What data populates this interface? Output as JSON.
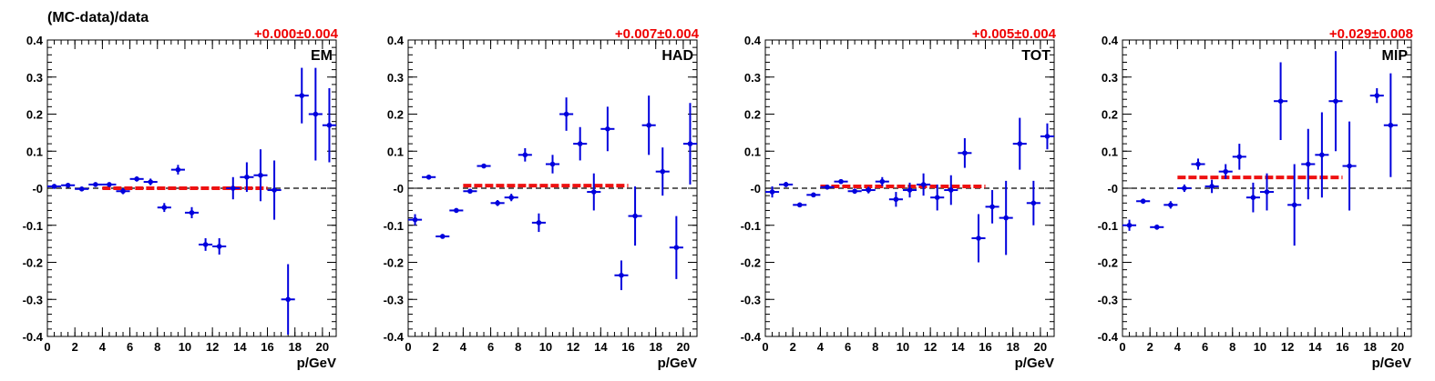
{
  "figure": {
    "ylabel": "(MC-data)/data",
    "xlabel": "p/GeV"
  },
  "colors": {
    "points": "#0000dd",
    "fit": "#ee1111",
    "fit_label": "#ee0000",
    "zero_line": "#000000"
  },
  "chart_data": [
    {
      "type": "scatter",
      "title": "EM",
      "fit_label": "+0.000±0.004",
      "fit": {
        "x": [
          4,
          16
        ],
        "y": 0.0
      },
      "xlabel": "p/GeV",
      "ylabel": "(MC-data)/data",
      "xlim": [
        0,
        21
      ],
      "ylim": [
        -0.4,
        0.4
      ],
      "xticks": [
        0,
        2,
        4,
        6,
        8,
        10,
        12,
        14,
        16,
        18,
        20
      ],
      "yticks": [
        -0.4,
        -0.3,
        -0.2,
        -0.1,
        0,
        0.1,
        0.2,
        0.3,
        0.4
      ],
      "ytick_labels": [
        "-0.4",
        "-0.3",
        "-0.2",
        "-0.1",
        "-0",
        "0.1",
        "0.2",
        "0.3",
        "0.4"
      ],
      "points": [
        {
          "x": 0.5,
          "y": 0.005,
          "err": 0.004
        },
        {
          "x": 1.5,
          "y": 0.008,
          "err": 0.004
        },
        {
          "x": 2.5,
          "y": -0.002,
          "err": 0.004
        },
        {
          "x": 3.5,
          "y": 0.01,
          "err": 0.005
        },
        {
          "x": 4.5,
          "y": 0.01,
          "err": 0.006
        },
        {
          "x": 5.5,
          "y": -0.008,
          "err": 0.008
        },
        {
          "x": 6.5,
          "y": 0.025,
          "err": 0.007
        },
        {
          "x": 7.5,
          "y": 0.017,
          "err": 0.009
        },
        {
          "x": 8.5,
          "y": -0.052,
          "err": 0.012
        },
        {
          "x": 9.5,
          "y": 0.05,
          "err": 0.013
        },
        {
          "x": 10.5,
          "y": -0.066,
          "err": 0.015
        },
        {
          "x": 11.5,
          "y": -0.152,
          "err": 0.017
        },
        {
          "x": 12.5,
          "y": -0.157,
          "err": 0.022
        },
        {
          "x": 13.5,
          "y": 0.0,
          "err": 0.03
        },
        {
          "x": 14.5,
          "y": 0.03,
          "err": 0.04
        },
        {
          "x": 15.5,
          "y": 0.035,
          "err": 0.07
        },
        {
          "x": 16.5,
          "y": -0.005,
          "err": 0.08
        },
        {
          "x": 17.5,
          "y": -0.3,
          "err": 0.095
        },
        {
          "x": 18.5,
          "y": 0.25,
          "err": 0.075
        },
        {
          "x": 19.5,
          "y": 0.2,
          "err": 0.125
        },
        {
          "x": 20.5,
          "y": 0.17,
          "err": 0.1
        }
      ]
    },
    {
      "type": "scatter",
      "title": "HAD",
      "fit_label": "+0.007±0.004",
      "fit": {
        "x": [
          4,
          16
        ],
        "y": 0.007
      },
      "xlabel": "p/GeV",
      "ylabel": "",
      "xlim": [
        0,
        21
      ],
      "ylim": [
        -0.4,
        0.4
      ],
      "xticks": [
        0,
        2,
        4,
        6,
        8,
        10,
        12,
        14,
        16,
        18,
        20
      ],
      "yticks": [
        -0.4,
        -0.3,
        -0.2,
        -0.1,
        0,
        0.1,
        0.2,
        0.3,
        0.4
      ],
      "ytick_labels": [
        "-0.4",
        "-0.3",
        "-0.2",
        "-0.1",
        "-0",
        "0.1",
        "0.2",
        "0.3",
        "0.4"
      ],
      "points": [
        {
          "x": 0.5,
          "y": -0.085,
          "err": 0.015
        },
        {
          "x": 1.5,
          "y": 0.03,
          "err": 0.006
        },
        {
          "x": 2.5,
          "y": -0.13,
          "err": 0.005
        },
        {
          "x": 3.5,
          "y": -0.06,
          "err": 0.005
        },
        {
          "x": 4.5,
          "y": -0.008,
          "err": 0.006
        },
        {
          "x": 5.5,
          "y": 0.06,
          "err": 0.006
        },
        {
          "x": 6.5,
          "y": -0.04,
          "err": 0.008
        },
        {
          "x": 7.5,
          "y": -0.025,
          "err": 0.01
        },
        {
          "x": 8.5,
          "y": 0.09,
          "err": 0.018
        },
        {
          "x": 9.5,
          "y": -0.093,
          "err": 0.025
        },
        {
          "x": 10.5,
          "y": 0.065,
          "err": 0.025
        },
        {
          "x": 11.5,
          "y": 0.2,
          "err": 0.045
        },
        {
          "x": 12.5,
          "y": 0.12,
          "err": 0.045
        },
        {
          "x": 13.5,
          "y": -0.01,
          "err": 0.05
        },
        {
          "x": 14.5,
          "y": 0.16,
          "err": 0.06
        },
        {
          "x": 15.5,
          "y": -0.235,
          "err": 0.04
        },
        {
          "x": 16.5,
          "y": -0.075,
          "err": 0.08
        },
        {
          "x": 17.5,
          "y": 0.17,
          "err": 0.08
        },
        {
          "x": 18.5,
          "y": 0.045,
          "err": 0.065
        },
        {
          "x": 19.5,
          "y": -0.16,
          "err": 0.085
        },
        {
          "x": 20.5,
          "y": 0.12,
          "err": 0.11
        }
      ]
    },
    {
      "type": "scatter",
      "title": "TOT",
      "fit_label": "+0.005±0.004",
      "fit": {
        "x": [
          4,
          16
        ],
        "y": 0.005
      },
      "xlabel": "p/GeV",
      "ylabel": "",
      "xlim": [
        0,
        21
      ],
      "ylim": [
        -0.4,
        0.4
      ],
      "xticks": [
        0,
        2,
        4,
        6,
        8,
        10,
        12,
        14,
        16,
        18,
        20
      ],
      "yticks": [
        -0.4,
        -0.3,
        -0.2,
        -0.1,
        0,
        0.1,
        0.2,
        0.3,
        0.4
      ],
      "ytick_labels": [
        "-0.4",
        "-0.3",
        "-0.2",
        "-0.1",
        "-0",
        "0.1",
        "0.2",
        "0.3",
        "0.4"
      ],
      "points": [
        {
          "x": 0.5,
          "y": -0.01,
          "err": 0.015
        },
        {
          "x": 1.5,
          "y": 0.01,
          "err": 0.007
        },
        {
          "x": 2.5,
          "y": -0.045,
          "err": 0.005
        },
        {
          "x": 3.5,
          "y": -0.018,
          "err": 0.005
        },
        {
          "x": 4.5,
          "y": 0.003,
          "err": 0.005
        },
        {
          "x": 5.5,
          "y": 0.018,
          "err": 0.006
        },
        {
          "x": 6.5,
          "y": -0.008,
          "err": 0.007
        },
        {
          "x": 7.5,
          "y": -0.005,
          "err": 0.009
        },
        {
          "x": 8.5,
          "y": 0.018,
          "err": 0.012
        },
        {
          "x": 9.5,
          "y": -0.03,
          "err": 0.02
        },
        {
          "x": 10.5,
          "y": -0.005,
          "err": 0.02
        },
        {
          "x": 11.5,
          "y": 0.01,
          "err": 0.03
        },
        {
          "x": 12.5,
          "y": -0.025,
          "err": 0.035
        },
        {
          "x": 13.5,
          "y": -0.005,
          "err": 0.04
        },
        {
          "x": 14.5,
          "y": 0.095,
          "err": 0.04
        },
        {
          "x": 15.5,
          "y": -0.135,
          "err": 0.065
        },
        {
          "x": 16.5,
          "y": -0.05,
          "err": 0.045
        },
        {
          "x": 17.5,
          "y": -0.08,
          "err": 0.1
        },
        {
          "x": 18.5,
          "y": 0.12,
          "err": 0.07
        },
        {
          "x": 19.5,
          "y": -0.04,
          "err": 0.06
        },
        {
          "x": 20.5,
          "y": 0.14,
          "err": 0.035
        }
      ]
    },
    {
      "type": "scatter",
      "title": "MIP",
      "fit_label": "+0.029±0.008",
      "fit": {
        "x": [
          4,
          16
        ],
        "y": 0.029
      },
      "xlabel": "p/GeV",
      "ylabel": "",
      "xlim": [
        0,
        21
      ],
      "ylim": [
        -0.4,
        0.4
      ],
      "xticks": [
        0,
        2,
        4,
        6,
        8,
        10,
        12,
        14,
        16,
        18,
        20
      ],
      "yticks": [
        -0.4,
        -0.3,
        -0.2,
        -0.1,
        0,
        0.1,
        0.2,
        0.3,
        0.4
      ],
      "ytick_labels": [
        "-0.4",
        "-0.3",
        "-0.2",
        "-0.1",
        "-0",
        "0.1",
        "0.2",
        "0.3",
        "0.4"
      ],
      "points": [
        {
          "x": 0.5,
          "y": -0.1,
          "err": 0.015
        },
        {
          "x": 1.5,
          "y": -0.035,
          "err": 0.007
        },
        {
          "x": 2.5,
          "y": -0.105,
          "err": 0.007
        },
        {
          "x": 3.5,
          "y": -0.045,
          "err": 0.01
        },
        {
          "x": 4.5,
          "y": 0.0,
          "err": 0.01
        },
        {
          "x": 5.5,
          "y": 0.065,
          "err": 0.015
        },
        {
          "x": 6.5,
          "y": 0.005,
          "err": 0.018
        },
        {
          "x": 7.5,
          "y": 0.045,
          "err": 0.02
        },
        {
          "x": 8.5,
          "y": 0.085,
          "err": 0.035
        },
        {
          "x": 9.5,
          "y": -0.025,
          "err": 0.04
        },
        {
          "x": 10.5,
          "y": -0.01,
          "err": 0.05
        },
        {
          "x": 11.5,
          "y": 0.235,
          "err": 0.105
        },
        {
          "x": 12.5,
          "y": -0.045,
          "err": 0.11
        },
        {
          "x": 13.5,
          "y": 0.065,
          "err": 0.095
        },
        {
          "x": 14.5,
          "y": 0.09,
          "err": 0.115
        },
        {
          "x": 15.5,
          "y": 0.235,
          "err": 0.135
        },
        {
          "x": 16.5,
          "y": 0.06,
          "err": 0.12
        },
        {
          "x": 18.5,
          "y": 0.25,
          "err": 0.02
        },
        {
          "x": 19.5,
          "y": 0.17,
          "err": 0.14
        }
      ]
    }
  ]
}
